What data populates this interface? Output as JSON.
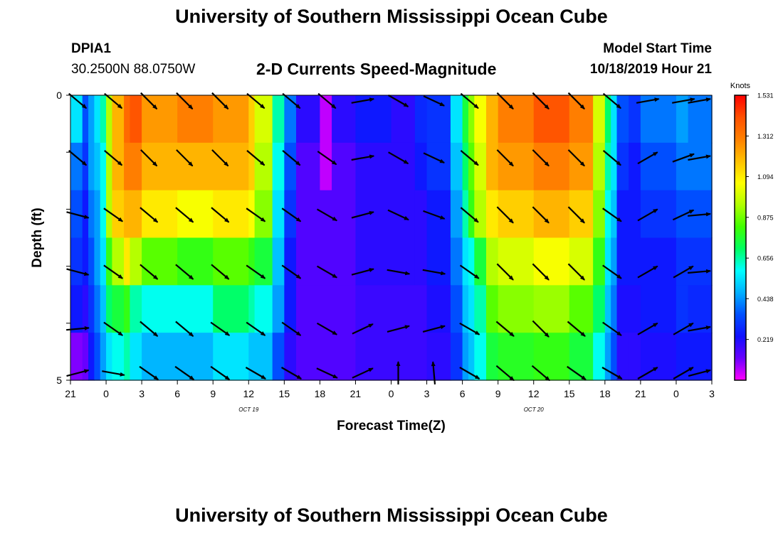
{
  "header": {
    "title": "University of Southern Mississippi Ocean Cube",
    "station_id": "DPIA1",
    "station_coords": "30.2500N 88.0750W",
    "subtitle": "2-D Currents Speed-Magnitude",
    "model_label": "Model Start Time",
    "model_time": "10/18/2019 Hour 21"
  },
  "footer": {
    "title": "University of Southern Mississippi Ocean Cube"
  },
  "chart_data": {
    "type": "heatmap",
    "title": "2-D Currents Speed-Magnitude",
    "xlabel": "Forecast Time(Z)",
    "ylabel": "Depth (ft)",
    "x_ticks": [
      "21",
      "0",
      "3",
      "6",
      "9",
      "12",
      "15",
      "18",
      "21",
      "0",
      "3",
      "6",
      "9",
      "12",
      "15",
      "18",
      "21",
      "0",
      "3"
    ],
    "x_hours": [
      0,
      3,
      6,
      9,
      12,
      15,
      18,
      21,
      24,
      27,
      30,
      33,
      36,
      39,
      42,
      45,
      48,
      51,
      54
    ],
    "x_range": [
      0,
      54
    ],
    "date_labels": [
      {
        "text": "OCT 19",
        "hour": 15
      },
      {
        "text": "OCT 20",
        "hour": 39
      }
    ],
    "y_ticks": [
      "0",
      "5"
    ],
    "y_range": [
      0,
      5
    ],
    "depth_layers": 5,
    "colorbar": {
      "unit": "Knots",
      "min": 0,
      "max": 1.531,
      "ticks": [
        "1.531",
        "1.312",
        "1.094",
        "0.875",
        "0.656",
        "0.438",
        "0.219"
      ],
      "tick_values": [
        1.531,
        1.312,
        1.094,
        0.875,
        0.656,
        0.438,
        0.219
      ],
      "colors": [
        "#ff00ff",
        "#6a00ff",
        "#1010ff",
        "#0050ff",
        "#00b0ff",
        "#00ffff",
        "#00ff60",
        "#40ff00",
        "#b0ff00",
        "#ffff00",
        "#ffc000",
        "#ff8000",
        "#ff5000",
        "#ff0000"
      ]
    },
    "speed_time": [
      0,
      1,
      1.5,
      2,
      2.5,
      3,
      3.5,
      4.5,
      5,
      6,
      9,
      12,
      15,
      15.5,
      17,
      18,
      19,
      21,
      22,
      24,
      27,
      29,
      30,
      32,
      33,
      33.5,
      34,
      35,
      36,
      39,
      42,
      44,
      45,
      45.5,
      46,
      47,
      48,
      51,
      52,
      54
    ],
    "speed_rows": [
      [
        0.55,
        0.35,
        0.45,
        0.55,
        0.65,
        0.95,
        1.2,
        1.35,
        1.4,
        1.25,
        1.3,
        1.25,
        1.15,
        1.0,
        0.65,
        0.4,
        0.2,
        0.05,
        0.2,
        0.25,
        0.2,
        0.28,
        0.3,
        0.55,
        0.75,
        0.9,
        1.05,
        1.2,
        1.3,
        1.4,
        1.3,
        1.0,
        0.7,
        0.55,
        0.35,
        0.3,
        0.4,
        0.45,
        0.4,
        0.35
      ],
      [
        0.4,
        0.3,
        0.45,
        0.5,
        0.6,
        0.95,
        1.2,
        1.3,
        1.3,
        1.2,
        1.2,
        1.2,
        1.15,
        0.95,
        0.6,
        0.35,
        0.15,
        0.05,
        0.15,
        0.2,
        0.2,
        0.25,
        0.3,
        0.5,
        0.7,
        0.85,
        1.0,
        1.2,
        1.25,
        1.3,
        1.25,
        0.95,
        0.65,
        0.55,
        0.3,
        0.25,
        0.35,
        0.4,
        0.4,
        0.35
      ],
      [
        0.35,
        0.25,
        0.4,
        0.45,
        0.6,
        0.95,
        1.15,
        1.2,
        1.2,
        1.1,
        1.05,
        1.1,
        1.05,
        0.9,
        0.55,
        0.3,
        0.15,
        0.15,
        0.15,
        0.2,
        0.2,
        0.2,
        0.25,
        0.45,
        0.65,
        0.8,
        0.95,
        1.1,
        1.15,
        1.2,
        1.15,
        0.9,
        0.6,
        0.5,
        0.25,
        0.25,
        0.3,
        0.35,
        0.35,
        0.3
      ],
      [
        0.3,
        0.25,
        0.35,
        0.45,
        0.55,
        0.8,
        0.95,
        1.1,
        0.95,
        0.85,
        0.8,
        0.85,
        0.8,
        0.75,
        0.5,
        0.25,
        0.15,
        0.15,
        0.15,
        0.2,
        0.2,
        0.2,
        0.25,
        0.4,
        0.55,
        0.6,
        0.75,
        0.95,
        1.0,
        1.05,
        1.0,
        0.8,
        0.55,
        0.45,
        0.25,
        0.25,
        0.25,
        0.3,
        0.3,
        0.3
      ],
      [
        0.25,
        0.2,
        0.3,
        0.4,
        0.5,
        0.7,
        0.75,
        0.8,
        0.65,
        0.6,
        0.6,
        0.7,
        0.65,
        0.6,
        0.45,
        0.25,
        0.15,
        0.15,
        0.15,
        0.18,
        0.18,
        0.18,
        0.22,
        0.35,
        0.5,
        0.55,
        0.65,
        0.85,
        0.9,
        0.92,
        0.85,
        0.7,
        0.5,
        0.4,
        0.22,
        0.22,
        0.25,
        0.3,
        0.28,
        0.28
      ],
      [
        0.1,
        0.12,
        0.25,
        0.35,
        0.45,
        0.55,
        0.6,
        0.65,
        0.55,
        0.48,
        0.48,
        0.55,
        0.5,
        0.5,
        0.35,
        0.2,
        0.15,
        0.15,
        0.15,
        0.18,
        0.18,
        0.18,
        0.2,
        0.3,
        0.45,
        0.5,
        0.6,
        0.75,
        0.78,
        0.8,
        0.75,
        0.6,
        0.45,
        0.35,
        0.2,
        0.2,
        0.22,
        0.25,
        0.25,
        0.25
      ]
    ],
    "vector_times": [
      0,
      3,
      6,
      9,
      12,
      15,
      18,
      21,
      24,
      27,
      30,
      33,
      36,
      39,
      42,
      45,
      48,
      51,
      54
    ],
    "vector_depths": [
      0,
      1,
      2,
      3,
      4,
      5
    ],
    "vector_angles": [
      [
        40,
        40,
        45,
        45,
        45,
        40,
        40,
        40,
        350,
        30,
        25,
        40,
        45,
        45,
        45,
        40,
        -10,
        -10,
        -10
      ],
      [
        40,
        40,
        45,
        45,
        45,
        40,
        40,
        35,
        350,
        30,
        25,
        40,
        45,
        45,
        45,
        40,
        330,
        340,
        -10
      ],
      [
        15,
        35,
        40,
        40,
        40,
        35,
        35,
        30,
        345,
        25,
        20,
        40,
        45,
        45,
        45,
        35,
        330,
        335,
        -5
      ],
      [
        15,
        35,
        40,
        40,
        40,
        35,
        35,
        30,
        345,
        10,
        10,
        35,
        45,
        45,
        45,
        35,
        330,
        330,
        -5
      ],
      [
        -5,
        35,
        40,
        40,
        35,
        35,
        35,
        30,
        335,
        -15,
        -15,
        30,
        40,
        45,
        40,
        35,
        330,
        330,
        -10
      ],
      [
        -15,
        10,
        35,
        35,
        35,
        30,
        30,
        25,
        335,
        -90,
        -95,
        30,
        40,
        40,
        35,
        30,
        330,
        330,
        -15
      ]
    ]
  }
}
